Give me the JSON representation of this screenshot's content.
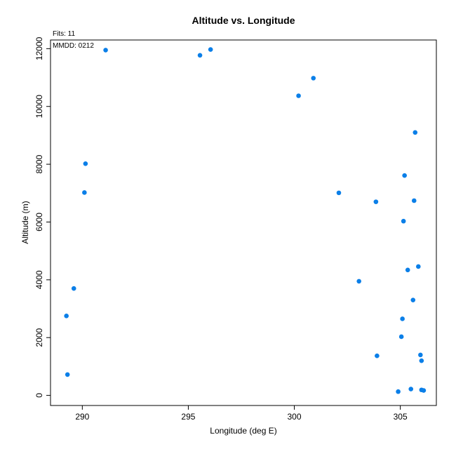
{
  "chart_data": {
    "type": "scatter",
    "title": "Altitude vs. Longitude",
    "xlabel": "Longitude (deg E)",
    "ylabel": "Altitude (m)",
    "xlim": [
      288.5,
      306.7
    ],
    "ylim": [
      -350,
      12300
    ],
    "xticks": [
      290,
      295,
      300,
      305
    ],
    "yticks": [
      0,
      2000,
      4000,
      6000,
      8000,
      10000,
      12000
    ],
    "grid": false,
    "color": "#0b7fe8",
    "annotations": {
      "fits": "Fits: 11",
      "mmdd": "MMDD: 0212"
    },
    "points": [
      {
        "x": 289.25,
        "y": 2750
      },
      {
        "x": 289.3,
        "y": 720
      },
      {
        "x": 289.6,
        "y": 3700
      },
      {
        "x": 290.1,
        "y": 7020
      },
      {
        "x": 290.15,
        "y": 8020
      },
      {
        "x": 291.1,
        "y": 11950
      },
      {
        "x": 295.55,
        "y": 11770
      },
      {
        "x": 296.05,
        "y": 11970
      },
      {
        "x": 300.2,
        "y": 10370
      },
      {
        "x": 300.9,
        "y": 10980
      },
      {
        "x": 302.1,
        "y": 7010
      },
      {
        "x": 303.05,
        "y": 3950
      },
      {
        "x": 303.85,
        "y": 6700
      },
      {
        "x": 303.9,
        "y": 1370
      },
      {
        "x": 304.9,
        "y": 130
      },
      {
        "x": 305.05,
        "y": 2030
      },
      {
        "x": 305.1,
        "y": 2650
      },
      {
        "x": 305.15,
        "y": 6030
      },
      {
        "x": 305.2,
        "y": 7610
      },
      {
        "x": 305.35,
        "y": 4340
      },
      {
        "x": 305.5,
        "y": 220
      },
      {
        "x": 305.6,
        "y": 3300
      },
      {
        "x": 305.65,
        "y": 6740
      },
      {
        "x": 305.7,
        "y": 9100
      },
      {
        "x": 305.85,
        "y": 4460
      },
      {
        "x": 305.95,
        "y": 1400
      },
      {
        "x": 306.0,
        "y": 1200
      },
      {
        "x": 306.0,
        "y": 190
      },
      {
        "x": 306.1,
        "y": 170
      }
    ]
  }
}
